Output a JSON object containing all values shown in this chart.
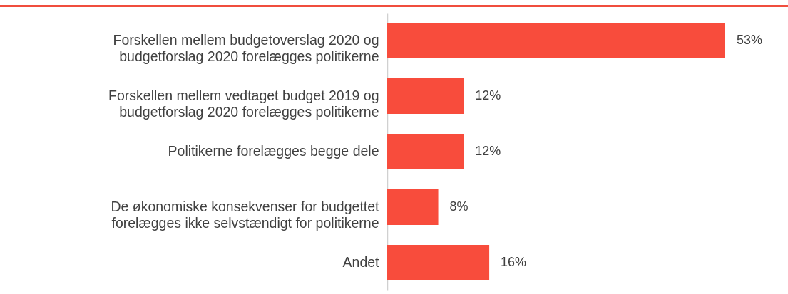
{
  "chart_data": {
    "type": "bar",
    "orientation": "horizontal",
    "categories": [
      "Forskellen mellem budgetoverslag 2020 og budgetforslag 2020 forelægges politikerne",
      "Forskellen mellem vedtaget budget 2019 og budgetforslag 2020 forelægges politikerne",
      "Politikerne forelægges begge dele",
      "De økonomiske konsekvenser for budgettet forelægges ikke selvstændigt for politikerne",
      "Andet"
    ],
    "values": [
      53,
      12,
      12,
      8,
      16
    ],
    "value_labels": [
      "53%",
      "12%",
      "12%",
      "8%",
      "16%"
    ],
    "color": "#f84c3c"
  }
}
